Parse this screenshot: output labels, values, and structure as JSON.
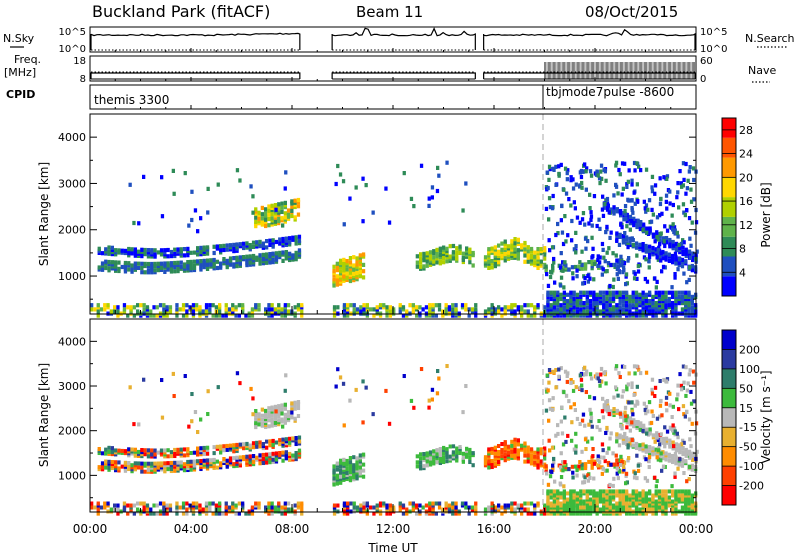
{
  "header": {
    "title": "Buckland Park (fitACF)",
    "beam": "Beam 11",
    "date": "08/Oct/2015"
  },
  "left_labels": {
    "nsky": "N.Sky",
    "freq": "Freq.",
    "freq_unit": "[MHz]",
    "cpid": "CPID"
  },
  "right_labels": {
    "nsearch": "N.Search",
    "nave": "Nave"
  },
  "noise_axis": {
    "top": "10^5",
    "bottom": "10^0"
  },
  "freq_axis": {
    "left_top": "18",
    "left_bottom": "8",
    "right_top": "60",
    "right_bottom": "0"
  },
  "cpid_segments": [
    {
      "label": "themis 3300"
    },
    {
      "label": "tbjmode7pulse -8600"
    }
  ],
  "colors": {
    "power": [
      "#0000ff",
      "#1f4fbf",
      "#2e8b57",
      "#5fb34a",
      "#b0d000",
      "#ffd700",
      "#ff9900",
      "#ff5500",
      "#ff0000"
    ],
    "velocity": [
      "#0000cc",
      "#2a3aa0",
      "#2e7d6b",
      "#3cba3c",
      "#b8b8b8",
      "#e8b030",
      "#ff8c00",
      "#ff4000",
      "#ff0000"
    ]
  },
  "chart_data": [
    {
      "type": "heatmap",
      "panel": "power",
      "ylabel": "Slant Range [km]",
      "xlim": [
        0,
        24
      ],
      "ylim": [
        180,
        4500
      ],
      "yticks": [
        "1000",
        "2000",
        "3000",
        "4000"
      ],
      "colorbar_label": "Power [dB]",
      "colorbar_ticks": [
        "4",
        "8",
        "12",
        "16",
        "20",
        "24",
        "28"
      ],
      "colorbar_range": [
        0,
        30
      ]
    },
    {
      "type": "heatmap",
      "panel": "velocity",
      "ylabel": "Slant Range [km]",
      "xlim": [
        0,
        24
      ],
      "ylim": [
        180,
        4500
      ],
      "yticks": [
        "1000",
        "2000",
        "3000",
        "4000"
      ],
      "colorbar_label": "Velocity [m s⁻¹]",
      "colorbar_ticks": [
        "200",
        "100",
        "50",
        "15",
        "-15",
        "-50",
        "-100",
        "-200"
      ]
    }
  ],
  "x_axis": {
    "ticks": [
      "00:00",
      "04:00",
      "08:00",
      "12:00",
      "16:00",
      "20:00",
      "00:00"
    ],
    "label": "Time UT"
  }
}
